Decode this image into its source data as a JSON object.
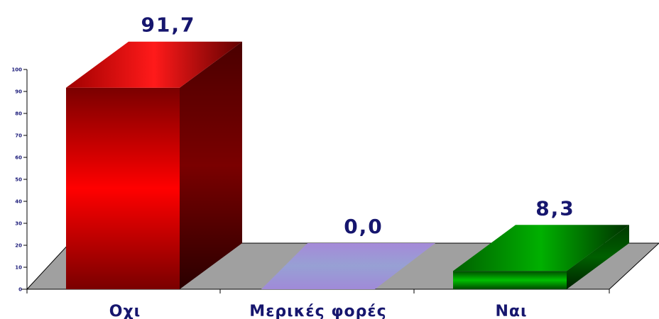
{
  "chart_data": {
    "type": "bar",
    "categories": [
      "Οχι",
      "Μερικές φορές",
      "Ναι"
    ],
    "values": [
      91.7,
      0.0,
      8.3
    ],
    "value_labels": [
      "91,7",
      "0,0",
      "8,3"
    ],
    "ylim": [
      0,
      100
    ],
    "yticks": [
      "0",
      "10",
      "20",
      "30",
      "40",
      "50",
      "60",
      "70",
      "80",
      "90",
      "100"
    ],
    "colors": [
      "#ff0000",
      "#9aa0d6",
      "#00a000"
    ],
    "floor_color": "#a0a0a0",
    "grid": false,
    "legend": "none"
  }
}
